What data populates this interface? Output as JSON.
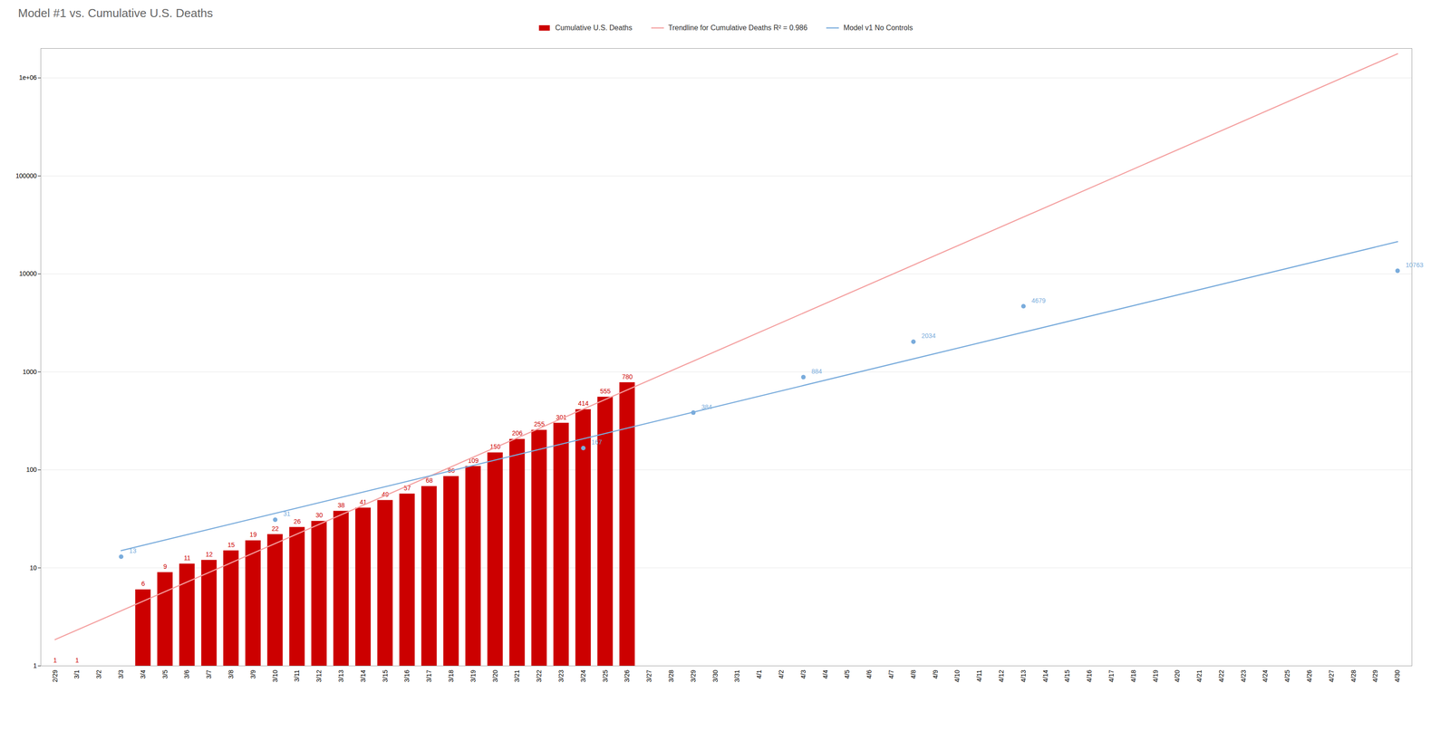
{
  "chart_data": {
    "type": "bar",
    "title": "Model #1 vs. Cumulative U.S. Deaths",
    "categories": [
      "2/29",
      "3/1",
      "3/2",
      "3/3",
      "3/4",
      "3/5",
      "3/6",
      "3/7",
      "3/8",
      "3/9",
      "3/10",
      "3/11",
      "3/12",
      "3/13",
      "3/14",
      "3/15",
      "3/16",
      "3/17",
      "3/18",
      "3/19",
      "3/20",
      "3/21",
      "3/22",
      "3/23",
      "3/24",
      "3/25",
      "3/26",
      "3/27",
      "3/28",
      "3/29",
      "3/30",
      "3/31",
      "4/1",
      "4/2",
      "4/3",
      "4/4",
      "4/5",
      "4/6",
      "4/7",
      "4/8",
      "4/9",
      "4/10",
      "4/11",
      "4/12",
      "4/13",
      "4/14",
      "4/15",
      "4/16",
      "4/17",
      "4/18",
      "4/19",
      "4/20",
      "4/21",
      "4/22",
      "4/23",
      "4/24",
      "4/25",
      "4/26",
      "4/27",
      "4/28",
      "4/29",
      "4/30"
    ],
    "log": "y",
    "ylim": [
      1,
      2000000
    ],
    "yticks": [
      1,
      10,
      100,
      1000,
      10000,
      100000,
      {
        "value": 1000000,
        "label": "1e+06"
      }
    ],
    "grid": true,
    "legend": "top",
    "series": [
      {
        "name": "Cumulative U.S. Deaths",
        "type": "bar",
        "color": "#cc0000",
        "data_labels": true,
        "values": [
          1,
          1,
          null,
          null,
          6,
          9,
          11,
          12,
          15,
          19,
          22,
          26,
          30,
          38,
          41,
          49,
          57,
          68,
          86,
          109,
          150,
          206,
          255,
          301,
          414,
          555,
          780,
          null,
          null,
          null,
          null,
          null,
          null,
          null,
          null,
          null,
          null,
          null,
          null,
          null,
          null,
          null,
          null,
          null,
          null,
          null,
          null,
          null,
          null,
          null,
          null,
          null,
          null,
          null,
          null,
          null,
          null,
          null,
          null,
          null,
          null,
          null
        ]
      },
      {
        "name": "Trendline for Cumulative Deaths R² = 0.986",
        "type": "line",
        "color": "#f4a0a0",
        "x": [
          "2/29",
          "4/30"
        ],
        "values": [
          1.8542,
          1763870
        ]
      },
      {
        "name": "Model v1 No Controls",
        "type": "line",
        "color": "#7aacdc",
        "x": [
          "3/3",
          "4/30"
        ],
        "values": [
          15.013,
          21325.7
        ]
      },
      {
        "type": "scatter",
        "color": "#7aacdc",
        "marker": "circle",
        "data_labels": true,
        "x": [
          "3/3",
          "3/10",
          "3/24",
          "3/29",
          "4/3",
          "4/8",
          "4/13",
          "4/30"
        ],
        "values": [
          13,
          31,
          167,
          384,
          884,
          2034,
          4679,
          10763
        ]
      }
    ]
  }
}
